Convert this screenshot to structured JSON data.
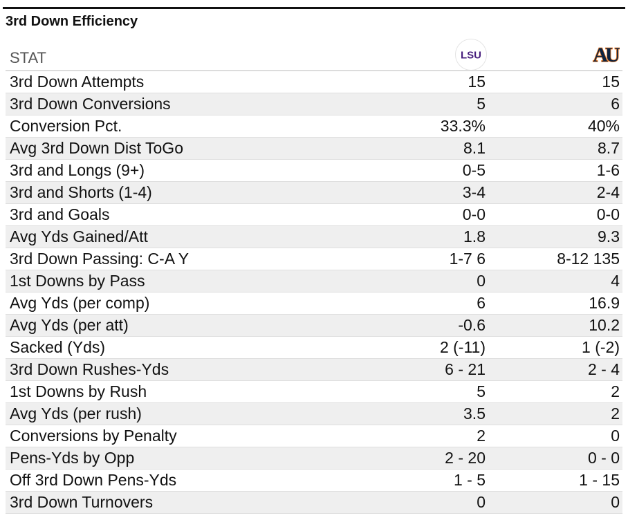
{
  "title": "3rd Down Efficiency",
  "header": {
    "stat_label": "STAT",
    "team1_logo_text": "LSU",
    "team2_logo_text": "AU"
  },
  "colors": {
    "lsu_purple": "#461d7c",
    "auburn_navy": "#0c2340",
    "auburn_orange": "#e87722"
  },
  "rows": [
    {
      "stat": "3rd Down Attempts",
      "lsu": "15",
      "aub": "15"
    },
    {
      "stat": "3rd Down Conversions",
      "lsu": "5",
      "aub": "6"
    },
    {
      "stat": "Conversion Pct.",
      "lsu": "33.3%",
      "aub": "40%"
    },
    {
      "stat": "Avg 3rd Down Dist ToGo",
      "lsu": "8.1",
      "aub": "8.7"
    },
    {
      "stat": "3rd and Longs (9+)",
      "lsu": "0-5",
      "aub": "1-6"
    },
    {
      "stat": "3rd and Shorts (1-4)",
      "lsu": "3-4",
      "aub": "2-4"
    },
    {
      "stat": "3rd and Goals",
      "lsu": "0-0",
      "aub": "0-0"
    },
    {
      "stat": "Avg Yds Gained/Att",
      "lsu": "1.8",
      "aub": "9.3"
    },
    {
      "stat": "3rd Down Passing: C-A Y",
      "lsu": "1-7 6",
      "aub": "8-12 135"
    },
    {
      "stat": "1st Downs by Pass",
      "lsu": "0",
      "aub": "4"
    },
    {
      "stat": "Avg Yds (per comp)",
      "lsu": "6",
      "aub": "16.9"
    },
    {
      "stat": "Avg Yds (per att)",
      "lsu": "-0.6",
      "aub": "10.2"
    },
    {
      "stat": "Sacked (Yds)",
      "lsu": "2 (-11)",
      "aub": "1 (-2)"
    },
    {
      "stat": "3rd Down Rushes-Yds",
      "lsu": "6 - 21",
      "aub": "2 - 4"
    },
    {
      "stat": "1st Downs by Rush",
      "lsu": "5",
      "aub": "2"
    },
    {
      "stat": "Avg Yds (per rush)",
      "lsu": "3.5",
      "aub": "2"
    },
    {
      "stat": "Conversions by Penalty",
      "lsu": "2",
      "aub": "0"
    },
    {
      "stat": "Pens-Yds by Opp",
      "lsu": "2 - 20",
      "aub": "0 - 0"
    },
    {
      "stat": "Off 3rd Down Pens-Yds",
      "lsu": "1 - 5",
      "aub": "1 - 15"
    },
    {
      "stat": "3rd Down Turnovers",
      "lsu": "0",
      "aub": "0"
    }
  ]
}
